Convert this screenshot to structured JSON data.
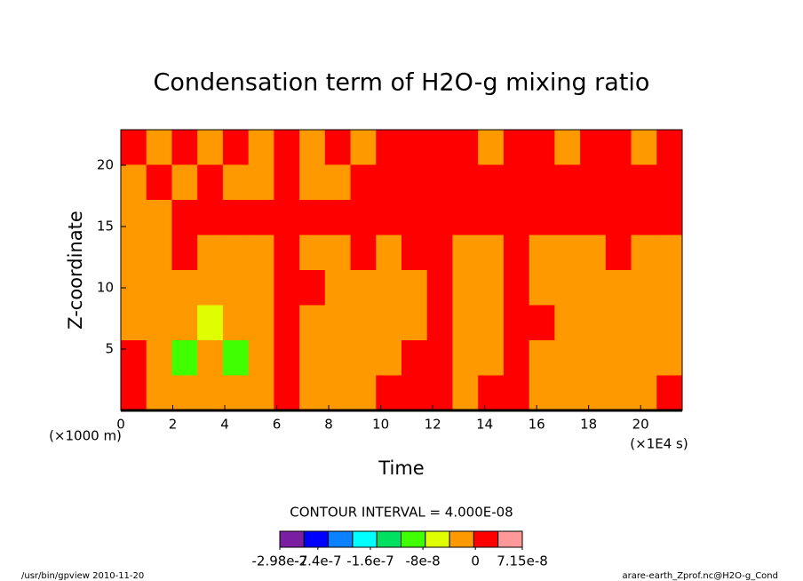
{
  "chart_data": {
    "type": "contour",
    "title": "Condensation term of H2O-g mixing ratio",
    "xlabel": "Time",
    "ylabel": "Z-coordinate",
    "xunit": "(×1E4 s)",
    "yunit": "(×1000 m)",
    "xlim": [
      0,
      21.6
    ],
    "ylim": [
      0,
      22.9
    ],
    "xticks": [
      0,
      2,
      4,
      6,
      8,
      10,
      12,
      14,
      16,
      18,
      20
    ],
    "yticks": [
      5,
      10,
      15,
      20
    ],
    "z": [
      [
        1e-08,
        -2e-08,
        1e-08,
        -2e-08,
        1e-08,
        -2e-08,
        1e-08,
        -2e-08,
        1e-08,
        -2e-08,
        1e-08,
        1e-08,
        1e-08,
        1e-08,
        -2e-08,
        1e-08,
        1e-08,
        -2e-08,
        1e-08,
        1e-08,
        -2e-08,
        1e-08
      ],
      [
        -2e-08,
        1e-08,
        -2e-08,
        1e-08,
        -2e-08,
        -2e-08,
        1e-08,
        -2e-08,
        -2e-08,
        1e-08,
        1e-08,
        1e-08,
        1e-08,
        1e-08,
        1e-08,
        1e-08,
        1e-08,
        1e-08,
        1e-08,
        1e-08,
        1e-08,
        1e-08
      ],
      [
        -2e-08,
        -2e-08,
        1e-08,
        1e-08,
        1e-08,
        1e-08,
        1e-08,
        1e-08,
        1e-08,
        1e-08,
        1e-08,
        1e-08,
        1e-08,
        1e-08,
        1e-08,
        1e-08,
        1e-08,
        1e-08,
        1e-08,
        1e-08,
        1e-08,
        1e-08
      ],
      [
        -2e-08,
        -2e-08,
        1e-08,
        -2e-08,
        -2e-08,
        -2e-08,
        1e-08,
        -2e-08,
        -2e-08,
        1e-08,
        -2e-08,
        1e-08,
        1e-08,
        -2e-08,
        -2e-08,
        1e-08,
        -2e-08,
        -2e-08,
        -2e-08,
        1e-08,
        -2e-08,
        -2e-08
      ],
      [
        -2e-08,
        -2e-08,
        -2e-08,
        -2e-08,
        -2e-08,
        -2e-08,
        1e-08,
        1e-08,
        -2e-08,
        -2e-08,
        -2e-08,
        -2e-08,
        1e-08,
        -2e-08,
        -2e-08,
        1e-08,
        -2e-08,
        -2e-08,
        -2e-08,
        -2e-08,
        -2e-08,
        -2e-08
      ],
      [
        -2e-08,
        -2e-08,
        -2e-08,
        -5e-08,
        -2e-08,
        -2e-08,
        1e-08,
        -2e-08,
        -2e-08,
        -2e-08,
        -2e-08,
        -2e-08,
        1e-08,
        -2e-08,
        -2e-08,
        1e-08,
        1e-08,
        -2e-08,
        -2e-08,
        -2e-08,
        -2e-08,
        -2e-08
      ],
      [
        1e-08,
        -2e-08,
        -1e-07,
        -2e-08,
        -1e-07,
        -2e-08,
        1e-08,
        -2e-08,
        -2e-08,
        -2e-08,
        -2e-08,
        1e-08,
        1e-08,
        -2e-08,
        -2e-08,
        1e-08,
        -2e-08,
        -2e-08,
        -2e-08,
        -2e-08,
        -2e-08,
        -2e-08
      ],
      [
        1e-08,
        -2e-08,
        -2e-08,
        -2e-08,
        -2e-08,
        -2e-08,
        1e-08,
        -2e-08,
        -2e-08,
        -2e-08,
        1e-08,
        1e-08,
        1e-08,
        -2e-08,
        1e-08,
        1e-08,
        -2e-08,
        -2e-08,
        -2e-08,
        -2e-08,
        -2e-08,
        1e-08
      ]
    ],
    "colorbar_title": "CONTOUR INTERVAL = 4.000E-08",
    "colorbar_colors": [
      "#7b1fa2",
      "#0000ff",
      "#0a82ff",
      "#00ffff",
      "#00e060",
      "#40ff00",
      "#dfff00",
      "#ff9900",
      "#ff0000",
      "#ff9999"
    ],
    "colorbar_lim": [
      -2.98e-07,
      7.15e-08
    ],
    "colorbar_ticks": [
      -2.98e-07,
      -2.4e-07,
      -1.6e-07,
      -8e-08,
      0,
      7.15e-08
    ],
    "footer_left": "/usr/bin/gpview  2010-11-20",
    "footer_right": "arare-earth_Zprof.nc@H2O-g_Cond"
  }
}
